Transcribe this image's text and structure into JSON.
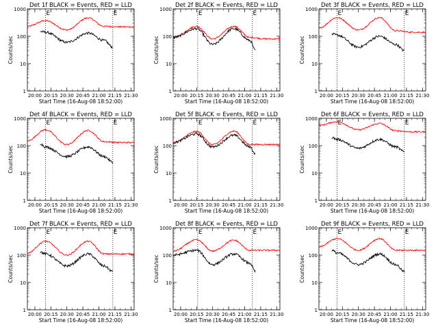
{
  "chart_data": [
    {
      "type": "line",
      "title": "Det 1f BLACK = Events, RED = LLD",
      "xlabel": "Start Time (16-Aug-08 18:52:00)",
      "ylabel": "Counts/sec",
      "x_tick_labels": [
        "20:00",
        "20:15",
        "20:30",
        "20:45",
        "21:00",
        "21:15",
        "21:30"
      ],
      "y_tick_labels": [
        "1",
        "10",
        "100",
        "1000"
      ],
      "ylim": [
        1,
        1000
      ],
      "y_scale": "log",
      "x_domain": [
        "19:53",
        "21:33"
      ],
      "markers": [
        "20:10",
        "21:13"
      ],
      "E_labels": [
        "E",
        "E"
      ],
      "series": [
        {
          "color": "#ff0000",
          "x": [
            "19:53",
            "20:10",
            "20:30",
            "20:50",
            "21:05",
            "21:20",
            "21:33"
          ],
          "y": [
            230,
            370,
            170,
            470,
            230,
            220,
            220
          ]
        },
        {
          "color": "#000000",
          "x": [
            "20:05",
            "20:10",
            "20:30",
            "20:50",
            "21:05",
            "21:13"
          ],
          "y": [
            150,
            140,
            60,
            130,
            70,
            40
          ]
        }
      ]
    },
    {
      "type": "line",
      "title": "Det 2f BLACK = Events, RED = LLD",
      "xlabel": "Start Time (16-Aug-08 18:52:00)",
      "ylabel": "Counts/sec",
      "x_tick_labels": [
        "20:00",
        "20:15",
        "20:30",
        "20:45",
        "21:00",
        "21:15",
        "21:30"
      ],
      "y_tick_labels": [
        "1",
        "10",
        "100",
        "1000"
      ],
      "ylim": [
        1,
        1000
      ],
      "y_scale": "log",
      "x_domain": [
        "19:53",
        "21:33"
      ],
      "markers": [
        "20:16",
        "21:07"
      ],
      "E_labels": [
        "E",
        "E"
      ],
      "series": [
        {
          "color": "#ff0000",
          "x": [
            "19:53",
            "20:15",
            "20:30",
            "20:50",
            "21:05",
            "21:20",
            "21:33"
          ],
          "y": [
            90,
            230,
            80,
            230,
            90,
            80,
            80
          ]
        },
        {
          "color": "#000000",
          "x": [
            "19:53",
            "20:15",
            "20:30",
            "20:50",
            "21:05",
            "21:10"
          ],
          "y": [
            90,
            190,
            50,
            190,
            70,
            30
          ]
        }
      ]
    },
    {
      "type": "line",
      "title": "Det 3f BLACK = Events, RED = LLD",
      "xlabel": "Start Time (16-Aug-08 18:52:00)",
      "ylabel": "Counts/sec",
      "x_tick_labels": [
        "20:00",
        "20:15",
        "20:30",
        "20:45",
        "21:00",
        "21:15",
        "21:30"
      ],
      "y_tick_labels": [
        "1",
        "10",
        "100",
        "1000"
      ],
      "ylim": [
        1,
        1000
      ],
      "y_scale": "log",
      "x_domain": [
        "19:53",
        "21:33"
      ],
      "markers": [
        "20:10",
        "21:13"
      ],
      "E_labels": [
        "E",
        "E"
      ],
      "series": [
        {
          "color": "#ff0000",
          "x": [
            "19:53",
            "20:10",
            "20:30",
            "20:50",
            "21:05",
            "21:20",
            "21:33"
          ],
          "y": [
            200,
            480,
            170,
            480,
            160,
            140,
            140
          ]
        },
        {
          "color": "#000000",
          "x": [
            "20:05",
            "20:10",
            "20:30",
            "20:50",
            "21:05",
            "21:13"
          ],
          "y": [
            120,
            110,
            40,
            100,
            50,
            30
          ]
        }
      ]
    },
    {
      "type": "line",
      "title": "Det 4f BLACK = Events, RED = LLD",
      "xlabel": "Start Time (16-Aug-08 18:52:00)",
      "ylabel": "Counts/sec",
      "x_tick_labels": [
        "20:00",
        "20:15",
        "20:30",
        "20:45",
        "21:00",
        "21:15",
        "21:30"
      ],
      "y_tick_labels": [
        "1",
        "10",
        "100",
        "1000"
      ],
      "ylim": [
        1,
        1000
      ],
      "y_scale": "log",
      "x_domain": [
        "19:53",
        "21:33"
      ],
      "markers": [
        "20:10",
        "21:13"
      ],
      "E_labels": [
        "E",
        "E"
      ],
      "series": [
        {
          "color": "#ff0000",
          "x": [
            "19:53",
            "20:10",
            "20:30",
            "20:50",
            "21:05",
            "21:20",
            "21:33"
          ],
          "y": [
            150,
            380,
            110,
            360,
            140,
            130,
            130
          ]
        },
        {
          "color": "#000000",
          "x": [
            "20:05",
            "20:10",
            "20:30",
            "20:50",
            "21:05",
            "21:13"
          ],
          "y": [
            120,
            90,
            40,
            90,
            40,
            25
          ]
        }
      ]
    },
    {
      "type": "line",
      "title": "Det 5f BLACK = Events, RED = LLD",
      "xlabel": "Start Time (16-Aug-08 18:52:00)",
      "ylabel": "Counts/sec",
      "x_tick_labels": [
        "20:00",
        "20:15",
        "20:30",
        "20:45",
        "21:00",
        "21:15",
        "21:30"
      ],
      "y_tick_labels": [
        "1",
        "10",
        "100",
        "1000"
      ],
      "ylim": [
        1,
        1000
      ],
      "y_scale": "log",
      "x_domain": [
        "19:53",
        "21:33"
      ],
      "markers": [
        "20:16",
        "21:07"
      ],
      "E_labels": [
        "E",
        "E"
      ],
      "series": [
        {
          "color": "#ff0000",
          "x": [
            "19:53",
            "20:15",
            "20:30",
            "20:50",
            "21:05",
            "21:20",
            "21:33"
          ],
          "y": [
            130,
            330,
            110,
            340,
            110,
            110,
            110
          ]
        },
        {
          "color": "#000000",
          "x": [
            "19:53",
            "20:15",
            "20:30",
            "20:50",
            "21:05",
            "21:10"
          ],
          "y": [
            130,
            270,
            90,
            240,
            90,
            50
          ]
        }
      ]
    },
    {
      "type": "line",
      "title": "Det 6f BLACK = Events, RED = LLD",
      "xlabel": "Start Time (16-Aug-08 18:52:00)",
      "ylabel": "Counts/sec",
      "x_tick_labels": [
        "20:00",
        "20:15",
        "20:30",
        "20:45",
        "21:00",
        "21:15",
        "21:30"
      ],
      "y_tick_labels": [
        "1",
        "10",
        "100",
        "1000"
      ],
      "ylim": [
        1,
        1000
      ],
      "y_scale": "log",
      "x_domain": [
        "19:53",
        "21:33"
      ],
      "markers": [
        "20:10",
        "21:13"
      ],
      "E_labels": [
        "E",
        "E"
      ],
      "series": [
        {
          "color": "#ff0000",
          "x": [
            "19:53",
            "20:10",
            "20:30",
            "20:50",
            "21:05",
            "21:20",
            "21:33"
          ],
          "y": [
            550,
            750,
            380,
            650,
            350,
            320,
            320
          ]
        },
        {
          "color": "#000000",
          "x": [
            "20:05",
            "20:10",
            "20:30",
            "20:50",
            "21:05",
            "21:13"
          ],
          "y": [
            200,
            170,
            80,
            170,
            90,
            60
          ]
        }
      ]
    },
    {
      "type": "line",
      "title": "Det 7f BLACK = Events, RED = LLD",
      "xlabel": "Start Time (16-Aug-08 18:52:00)",
      "ylabel": "Counts/sec",
      "x_tick_labels": [
        "20:00",
        "20:15",
        "20:30",
        "20:45",
        "21:00",
        "21:15",
        "21:30"
      ],
      "y_tick_labels": [
        "1",
        "10",
        "100",
        "1000"
      ],
      "ylim": [
        1,
        1000
      ],
      "y_scale": "log",
      "x_domain": [
        "19:53",
        "21:33"
      ],
      "markers": [
        "20:10",
        "21:13"
      ],
      "E_labels": [
        "E",
        "E"
      ],
      "series": [
        {
          "color": "#ff0000",
          "x": [
            "19:53",
            "20:10",
            "20:30",
            "20:50",
            "21:05",
            "21:20",
            "21:33"
          ],
          "y": [
            120,
            320,
            100,
            320,
            110,
            110,
            110
          ]
        },
        {
          "color": "#000000",
          "x": [
            "20:05",
            "20:10",
            "20:30",
            "20:50",
            "21:05",
            "21:13"
          ],
          "y": [
            130,
            110,
            40,
            110,
            40,
            25
          ]
        }
      ]
    },
    {
      "type": "line",
      "title": "Det 8f BLACK = Events, RED = LLD",
      "xlabel": "Start Time (16-Aug-08 18:52:00)",
      "ylabel": "Counts/sec",
      "x_tick_labels": [
        "20:00",
        "20:15",
        "20:30",
        "20:45",
        "21:00",
        "21:15",
        "21:30"
      ],
      "y_tick_labels": [
        "1",
        "10",
        "100",
        "1000"
      ],
      "ylim": [
        1,
        1000
      ],
      "y_scale": "log",
      "x_domain": [
        "19:53",
        "21:33"
      ],
      "markers": [
        "20:16",
        "21:07"
      ],
      "E_labels": [
        "E",
        "E"
      ],
      "series": [
        {
          "color": "#ff0000",
          "x": [
            "19:53",
            "20:15",
            "20:30",
            "20:50",
            "21:05",
            "21:20",
            "21:33"
          ],
          "y": [
            140,
            360,
            140,
            350,
            150,
            150,
            150
          ]
        },
        {
          "color": "#000000",
          "x": [
            "19:53",
            "20:15",
            "20:30",
            "20:50",
            "21:05",
            "21:10"
          ],
          "y": [
            100,
            150,
            45,
            110,
            50,
            25
          ]
        }
      ]
    },
    {
      "type": "line",
      "title": "Det 9f BLACK = Events, RED = LLD",
      "xlabel": "Start Time (16-Aug-08 18:52:00)",
      "ylabel": "Counts/sec",
      "x_tick_labels": [
        "20:00",
        "20:15",
        "20:30",
        "20:45",
        "21:00",
        "21:15",
        "21:30"
      ],
      "y_tick_labels": [
        "1",
        "10",
        "100",
        "1000"
      ],
      "ylim": [
        1,
        1000
      ],
      "y_scale": "log",
      "x_domain": [
        "19:53",
        "21:33"
      ],
      "markers": [
        "20:10",
        "21:13"
      ],
      "E_labels": [
        "E",
        "E"
      ],
      "series": [
        {
          "color": "#ff0000",
          "x": [
            "19:53",
            "20:10",
            "20:30",
            "20:50",
            "21:05",
            "21:20",
            "21:33"
          ],
          "y": [
            200,
            400,
            150,
            400,
            150,
            150,
            150
          ]
        },
        {
          "color": "#000000",
          "x": [
            "20:05",
            "20:10",
            "20:30",
            "20:50",
            "21:05",
            "21:13"
          ],
          "y": [
            150,
            120,
            45,
            110,
            45,
            25
          ]
        }
      ]
    }
  ]
}
